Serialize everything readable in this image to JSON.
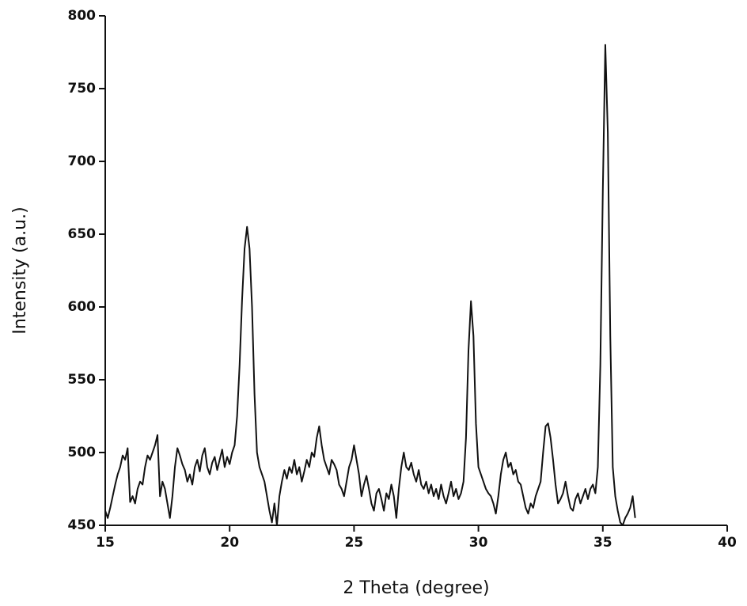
{
  "chart_data": {
    "type": "line",
    "x_label": "2 Theta (degree)",
    "y_label": "Intensity (a.u.)",
    "xlim": [
      15,
      40
    ],
    "xticks": [
      15,
      20,
      25,
      30,
      35,
      40
    ],
    "ylim": [
      450,
      800
    ],
    "yticks": [
      450,
      500,
      550,
      600,
      650,
      700,
      750,
      800
    ],
    "color": "#111111",
    "x": [
      15.0,
      15.1,
      15.2,
      15.3,
      15.4,
      15.5,
      15.6,
      15.7,
      15.8,
      15.9,
      16.0,
      16.1,
      16.2,
      16.3,
      16.4,
      16.5,
      16.6,
      16.7,
      16.8,
      16.9,
      17.0,
      17.1,
      17.2,
      17.3,
      17.4,
      17.5,
      17.6,
      17.7,
      17.8,
      17.9,
      18.0,
      18.1,
      18.2,
      18.3,
      18.4,
      18.5,
      18.6,
      18.7,
      18.8,
      18.9,
      19.0,
      19.1,
      19.2,
      19.3,
      19.4,
      19.5,
      19.6,
      19.7,
      19.8,
      19.9,
      20.0,
      20.1,
      20.2,
      20.3,
      20.4,
      20.5,
      20.6,
      20.7,
      20.8,
      20.9,
      21.0,
      21.1,
      21.2,
      21.3,
      21.4,
      21.5,
      21.6,
      21.7,
      21.8,
      21.9,
      22.0,
      22.1,
      22.2,
      22.3,
      22.4,
      22.5,
      22.6,
      22.7,
      22.8,
      22.9,
      23.0,
      23.1,
      23.2,
      23.3,
      23.4,
      23.5,
      23.6,
      23.7,
      23.8,
      23.9,
      24.0,
      24.1,
      24.2,
      24.3,
      24.4,
      24.5,
      24.6,
      24.7,
      24.8,
      24.9,
      25.0,
      25.1,
      25.2,
      25.3,
      25.4,
      25.5,
      25.6,
      25.7,
      25.8,
      25.9,
      26.0,
      26.1,
      26.2,
      26.3,
      26.4,
      26.5,
      26.6,
      26.7,
      26.8,
      26.9,
      27.0,
      27.1,
      27.2,
      27.3,
      27.4,
      27.5,
      27.6,
      27.7,
      27.8,
      27.9,
      28.0,
      28.1,
      28.2,
      28.3,
      28.4,
      28.5,
      28.6,
      28.7,
      28.8,
      28.9,
      29.0,
      29.1,
      29.2,
      29.3,
      29.4,
      29.5,
      29.6,
      29.7,
      29.8,
      29.9,
      30.0,
      30.1,
      30.2,
      30.3,
      30.4,
      30.5,
      30.6,
      30.7,
      30.8,
      30.9,
      31.0,
      31.1,
      31.2,
      31.3,
      31.4,
      31.5,
      31.6,
      31.7,
      31.8,
      31.9,
      32.0,
      32.1,
      32.2,
      32.3,
      32.4,
      32.5,
      32.6,
      32.7,
      32.8,
      32.9,
      33.0,
      33.1,
      33.2,
      33.3,
      33.4,
      33.5,
      33.6,
      33.7,
      33.8,
      33.9,
      34.0,
      34.1,
      34.2,
      34.3,
      34.4,
      34.5,
      34.6,
      34.7,
      34.8,
      34.9,
      35.0,
      35.1,
      35.2,
      35.3,
      35.4,
      35.5,
      35.6,
      35.7,
      35.8,
      35.9,
      36.0,
      36.1,
      36.2,
      36.3
    ],
    "values": [
      460,
      455,
      462,
      470,
      478,
      485,
      490,
      498,
      495,
      503,
      466,
      470,
      465,
      475,
      480,
      478,
      490,
      498,
      495,
      500,
      505,
      512,
      470,
      480,
      475,
      465,
      455,
      470,
      490,
      503,
      498,
      492,
      488,
      480,
      485,
      478,
      490,
      495,
      487,
      498,
      503,
      490,
      485,
      493,
      497,
      488,
      495,
      502,
      490,
      497,
      492,
      500,
      505,
      525,
      560,
      605,
      640,
      655,
      640,
      600,
      540,
      500,
      490,
      485,
      480,
      470,
      460,
      452,
      465,
      450,
      470,
      480,
      488,
      482,
      490,
      486,
      495,
      485,
      490,
      480,
      487,
      495,
      490,
      500,
      497,
      510,
      518,
      505,
      495,
      490,
      485,
      495,
      492,
      488,
      478,
      475,
      470,
      480,
      490,
      495,
      505,
      495,
      485,
      470,
      478,
      484,
      475,
      465,
      460,
      472,
      475,
      468,
      460,
      472,
      468,
      478,
      470,
      455,
      475,
      490,
      500,
      490,
      488,
      493,
      485,
      480,
      488,
      478,
      475,
      480,
      472,
      478,
      470,
      475,
      468,
      478,
      470,
      465,
      472,
      480,
      470,
      475,
      468,
      472,
      480,
      510,
      570,
      604,
      580,
      520,
      490,
      485,
      480,
      475,
      472,
      470,
      465,
      458,
      470,
      485,
      495,
      500,
      490,
      493,
      485,
      488,
      480,
      478,
      470,
      462,
      458,
      465,
      462,
      470,
      475,
      480,
      500,
      518,
      520,
      510,
      495,
      478,
      465,
      468,
      472,
      480,
      470,
      462,
      460,
      468,
      472,
      465,
      470,
      475,
      468,
      475,
      478,
      472,
      490,
      560,
      680,
      780,
      720,
      580,
      490,
      470,
      460,
      452,
      450,
      455,
      458,
      462,
      470,
      455
    ]
  }
}
